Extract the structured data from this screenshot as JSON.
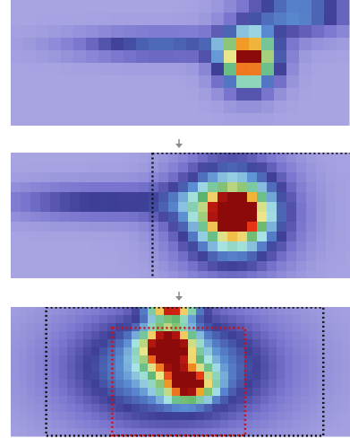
{
  "panels": [
    {
      "name": "stage-1-heatmap",
      "cell": 14,
      "cols": 27,
      "rows": 10,
      "blobs": [
        {
          "cx": 19,
          "cy": 4.8,
          "sx": 1.6,
          "sy": 1.6,
          "a": 1.0
        },
        {
          "cx": 12,
          "cy": 3.6,
          "sx": 5.0,
          "sy": 0.8,
          "a": 0.35
        },
        {
          "cx": 23,
          "cy": 1.0,
          "sx": 3.0,
          "sy": 1.2,
          "a": 0.42
        }
      ],
      "boxes": []
    },
    {
      "name": "stage-2-heatmap",
      "cell": 11,
      "cols": 35,
      "rows": 13,
      "blobs": [
        {
          "cx": 22.5,
          "cy": 6.2,
          "sx": 4.0,
          "sy": 3.8,
          "a": 0.72
        },
        {
          "cx": 22.8,
          "cy": 6.2,
          "sx": 1.5,
          "sy": 1.3,
          "a": 1.0
        },
        {
          "cx": 9,
          "cy": 5.0,
          "sx": 7.0,
          "sy": 1.3,
          "a": 0.3
        }
      ],
      "boxes": [
        {
          "name": "black-dotted-box",
          "color": "#111111",
          "x": 14.4,
          "y": 0.05,
          "w": 20.6,
          "h": 12.9
        }
      ]
    },
    {
      "name": "stage-3-heatmap",
      "cell": 9,
      "cols": 43,
      "rows": 16,
      "blobs": [
        {
          "cx": 20,
          "cy": 7.5,
          "sx": 9.5,
          "sy": 5.5,
          "a": 0.5
        },
        {
          "cx": 19.5,
          "cy": 5.0,
          "sx": 2.0,
          "sy": 1.8,
          "a": 0.95
        },
        {
          "cx": 22,
          "cy": 9.5,
          "sx": 2.0,
          "sy": 1.4,
          "a": 0.75
        },
        {
          "cx": 20,
          "cy": 0.6,
          "sx": 2.0,
          "sy": 0.6,
          "a": 0.72
        }
      ],
      "boxes": [
        {
          "name": "black-dotted-box",
          "color": "#111111",
          "x": 4.4,
          "y": 0.05,
          "w": 34.4,
          "h": 15.9
        },
        {
          "name": "red-dotted-box",
          "color": "#cc1111",
          "x": 12.6,
          "y": 2.6,
          "w": 16.5,
          "h": 13.3
        }
      ]
    }
  ]
}
